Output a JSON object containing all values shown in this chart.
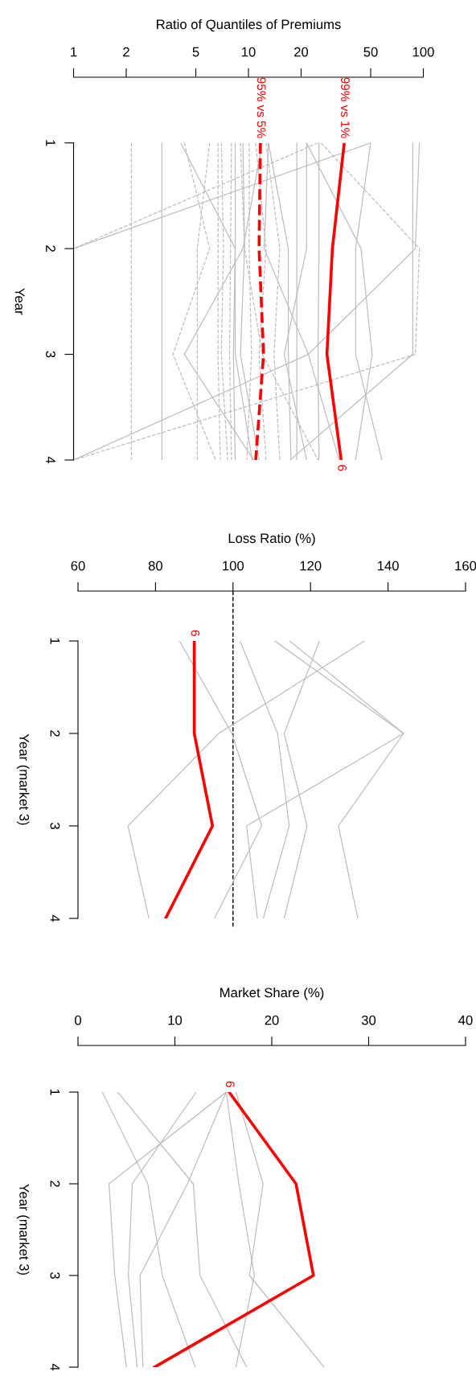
{
  "chart_data": [
    {
      "type": "line",
      "orientation": "horizontal",
      "log": "x",
      "xlabel": "Ratio of Quantiles of Premiums",
      "ylabel": "Year",
      "categories": [
        "1",
        "2",
        "3",
        "4"
      ],
      "xlim": [
        1,
        100
      ],
      "xticks": [
        1,
        2,
        5,
        10,
        20,
        50,
        100
      ],
      "series": [
        {
          "color": "#bebebe",
          "values": [
            3.2,
            3.2,
            3.2,
            3.2
          ]
        },
        {
          "color": "#bebebe",
          "values": [
            4.1,
            8.4,
            8.4,
            10.5
          ]
        },
        {
          "color": "#bebebe",
          "values": [
            12,
            9.3,
            4.3,
            10.7
          ]
        },
        {
          "color": "#bebebe",
          "values": [
            8.4,
            8.4,
            8.2,
            8.4
          ]
        },
        {
          "color": "#bebebe",
          "values": [
            9.3,
            9.5,
            9,
            11.5
          ]
        },
        {
          "color": "#bebebe",
          "values": [
            13,
            16.9,
            16.9,
            17.5
          ]
        },
        {
          "color": "#bebebe",
          "values": [
            18.9,
            18.9,
            18.9,
            18.9
          ]
        },
        {
          "color": "#bebebe",
          "values": [
            21.5,
            21.5,
            16,
            21.5
          ]
        },
        {
          "color": "#bebebe",
          "values": [
            25.3,
            25.3,
            25,
            25.3
          ]
        },
        {
          "color": "#bebebe",
          "values": [
            50,
            1,
            1,
            1
          ]
        },
        {
          "color": "#bebebe",
          "values": [
            95,
            90,
            22,
            1
          ]
        },
        {
          "color": "#bebebe",
          "values": [
            87,
            87,
            87,
            17.3
          ]
        },
        {
          "color": "#bebebe",
          "values": [
            21.5,
            44,
            51,
            41
          ]
        },
        {
          "color": "#bebebe",
          "values": [
            50,
            41,
            41,
            58
          ]
        },
        {
          "color": "#bebebe",
          "values": [
            13,
            12.3,
            22,
            33
          ]
        },
        {
          "color": "#bebebe",
          "line_style": "dashed",
          "values": [
            2.14,
            2.14,
            2.14,
            2.14
          ]
        },
        {
          "color": "#bebebe",
          "line_style": "dashed",
          "values": [
            4.3,
            6,
            3.7,
            6.5
          ]
        },
        {
          "color": "#bebebe",
          "line_style": "dashed",
          "values": [
            6.7,
            6.7,
            6.7,
            6.9
          ]
        },
        {
          "color": "#bebebe",
          "line_style": "dashed",
          "values": [
            6,
            5.1,
            5.1,
            5.1
          ]
        },
        {
          "color": "#bebebe",
          "line_style": "dashed",
          "values": [
            7,
            7.2,
            7,
            7.6
          ]
        },
        {
          "color": "#bebebe",
          "line_style": "dashed",
          "values": [
            8,
            7.9,
            7.8,
            8
          ]
        },
        {
          "color": "#bebebe",
          "line_style": "dashed",
          "values": [
            10.1,
            10.1,
            10.4,
            9.8
          ]
        },
        {
          "color": "#bebebe",
          "line_style": "dashed",
          "values": [
            11,
            12.6,
            11.5,
            12.6
          ]
        },
        {
          "color": "#bebebe",
          "line_style": "dashed",
          "values": [
            12.6,
            15.1,
            14,
            15.1
          ]
        },
        {
          "color": "#bebebe",
          "line_style": "dashed",
          "values": [
            25,
            1,
            1,
            1
          ]
        },
        {
          "color": "#bebebe",
          "line_style": "dashed",
          "values": [
            26,
            95,
            90,
            1
          ]
        },
        {
          "color": "#bebebe",
          "line_style": "dashed",
          "values": [
            9,
            9.5,
            12,
            25
          ]
        },
        {
          "name": "99% vs 1%",
          "color": "#ff0000",
          "values": [
            35.3,
            30.2,
            28.1,
            33.9
          ]
        },
        {
          "name": "95% vs 5%",
          "color": "#ff0000",
          "line_style": "dashed",
          "values": [
            11.7,
            11.5,
            12.2,
            11
          ]
        }
      ],
      "annotations": [
        {
          "text": "6",
          "x": 33.9,
          "y": "4"
        }
      ]
    },
    {
      "type": "line",
      "orientation": "horizontal",
      "xlabel": "Loss Ratio (%)",
      "ylabel": "Year (market 3)",
      "categories": [
        "1",
        "2",
        "3",
        "4"
      ],
      "xlim": [
        60,
        160
      ],
      "xticks": [
        60,
        80,
        100,
        120,
        140,
        160
      ],
      "ref_lines": [
        {
          "axis": "x",
          "value": 100,
          "color": "#000000",
          "line_style": "dashed"
        }
      ],
      "series": [
        {
          "color": "#bebebe",
          "values": [
            86.2,
            99.7,
            107.4,
            95.2
          ]
        },
        {
          "color": "#bebebe",
          "values": [
            133.9,
            96.3,
            72.9,
            78.3
          ]
        },
        {
          "color": "#bebebe",
          "values": [
            101.8,
            111.5,
            114.5,
            107.8
          ]
        },
        {
          "color": "#bebebe",
          "values": [
            122.3,
            113.2,
            119.1,
            113.2
          ]
        },
        {
          "color": "#bebebe",
          "values": [
            114.6,
            144,
            127.2,
            132.2
          ]
        },
        {
          "color": "#bebebe",
          "values": [
            110.8,
            144,
            103.5,
            106.3
          ]
        },
        {
          "name": "6",
          "color": "#ff0000",
          "values": [
            90,
            90,
            94.7,
            82.6
          ]
        }
      ]
    },
    {
      "type": "line",
      "orientation": "horizontal",
      "xlabel": "Market Share (%)",
      "ylabel": "Year (market 3)",
      "categories": [
        "1",
        "2",
        "3",
        "4"
      ],
      "xlim": [
        0,
        40
      ],
      "xticks": [
        0,
        10,
        20,
        30,
        40
      ],
      "series": [
        {
          "color": "#bebebe",
          "values": [
            2.5,
            7.2,
            8.7,
            12.1
          ]
        },
        {
          "color": "#bebebe",
          "values": [
            4.1,
            11.9,
            12.6,
            17.4
          ]
        },
        {
          "color": "#bebebe",
          "values": [
            12.2,
            5.6,
            5.2,
            6.1
          ]
        },
        {
          "color": "#bebebe",
          "values": [
            15.3,
            3.2,
            3.8,
            5
          ]
        },
        {
          "color": "#bebebe",
          "values": [
            15.3,
            11.3,
            6.4,
            6.7
          ]
        },
        {
          "color": "#bebebe",
          "values": [
            16.3,
            19.1,
            17.7,
            25.4
          ]
        },
        {
          "color": "#bebebe",
          "values": [
            15.3,
            16.6,
            18.2,
            16.3
          ]
        },
        {
          "name": "6",
          "color": "#ff0000",
          "values": [
            15.6,
            22.5,
            24.3,
            7.9
          ]
        }
      ]
    }
  ]
}
